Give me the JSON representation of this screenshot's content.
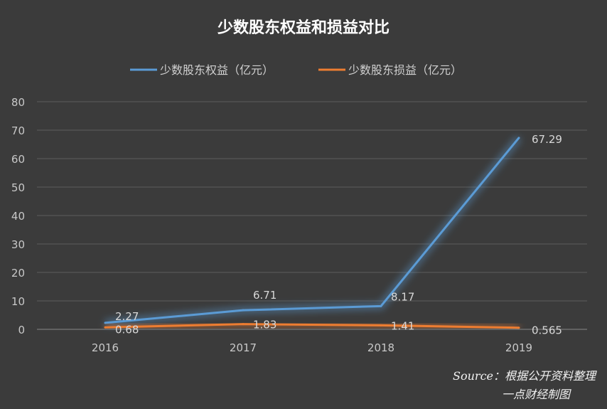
{
  "chart_data": {
    "type": "line",
    "title": "少数股东权益和损益对比",
    "categories": [
      "2016",
      "2017",
      "2018",
      "2019"
    ],
    "series": [
      {
        "name": "少数股东权益（亿元）",
        "color": "#5b9bd5",
        "values": [
          2.27,
          6.71,
          8.17,
          67.29
        ],
        "labels": [
          "2.27",
          "6.71",
          "8.17",
          "67.29"
        ]
      },
      {
        "name": "少数股东损益（亿元）",
        "color": "#ed7d31",
        "values": [
          0.68,
          1.83,
          1.41,
          0.565
        ],
        "labels": [
          "0.68",
          "1.83",
          "1.41",
          "0.565"
        ]
      }
    ],
    "ylim": [
      0,
      80
    ],
    "yticks": [
      0,
      10,
      20,
      30,
      40,
      50,
      60,
      70,
      80
    ],
    "grid": true,
    "legend": "top"
  },
  "source": {
    "line1": "Source：根据公开资料整理",
    "line2": "一点财经制图"
  }
}
